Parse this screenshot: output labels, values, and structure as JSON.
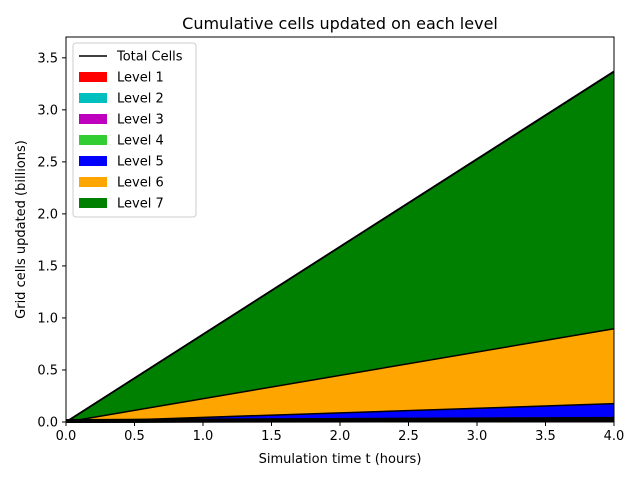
{
  "chart_data": {
    "type": "area",
    "title": "Cumulative cells updated on each level",
    "xlabel": "Simulation time t (hours)",
    "ylabel": "Grid cells updated (billions)",
    "xlim": [
      0,
      4
    ],
    "ylim": [
      0,
      3.7
    ],
    "xticks": [
      "0.0",
      "0.5",
      "1.0",
      "1.5",
      "2.0",
      "2.5",
      "3.0",
      "3.5",
      "4.0"
    ],
    "yticks": [
      "0.0",
      "0.5",
      "1.0",
      "1.5",
      "2.0",
      "2.5",
      "3.0",
      "3.5"
    ],
    "x": [
      0,
      4
    ],
    "stacked": true,
    "grid": false,
    "legend_position": "upper-left",
    "total": {
      "name": "Total Cells",
      "color": "#000000",
      "values": [
        0,
        3.37
      ]
    },
    "series": [
      {
        "name": "Level 1",
        "color": "#ff0000",
        "values": [
          0,
          0.004
        ]
      },
      {
        "name": "Level 2",
        "color": "#00bfbf",
        "values": [
          0,
          0.004
        ]
      },
      {
        "name": "Level 3",
        "color": "#bf00bf",
        "values": [
          0,
          0.004
        ]
      },
      {
        "name": "Level 4",
        "color": "#32cd32",
        "values": [
          0,
          0.004
        ]
      },
      {
        "name": "Level 5",
        "color": "#0000ff",
        "values": [
          0,
          0.16
        ]
      },
      {
        "name": "Level 6",
        "color": "#ffa500",
        "values": [
          0,
          0.72
        ]
      },
      {
        "name": "Level 7",
        "color": "#008000",
        "values": [
          0,
          2.47
        ]
      }
    ]
  }
}
